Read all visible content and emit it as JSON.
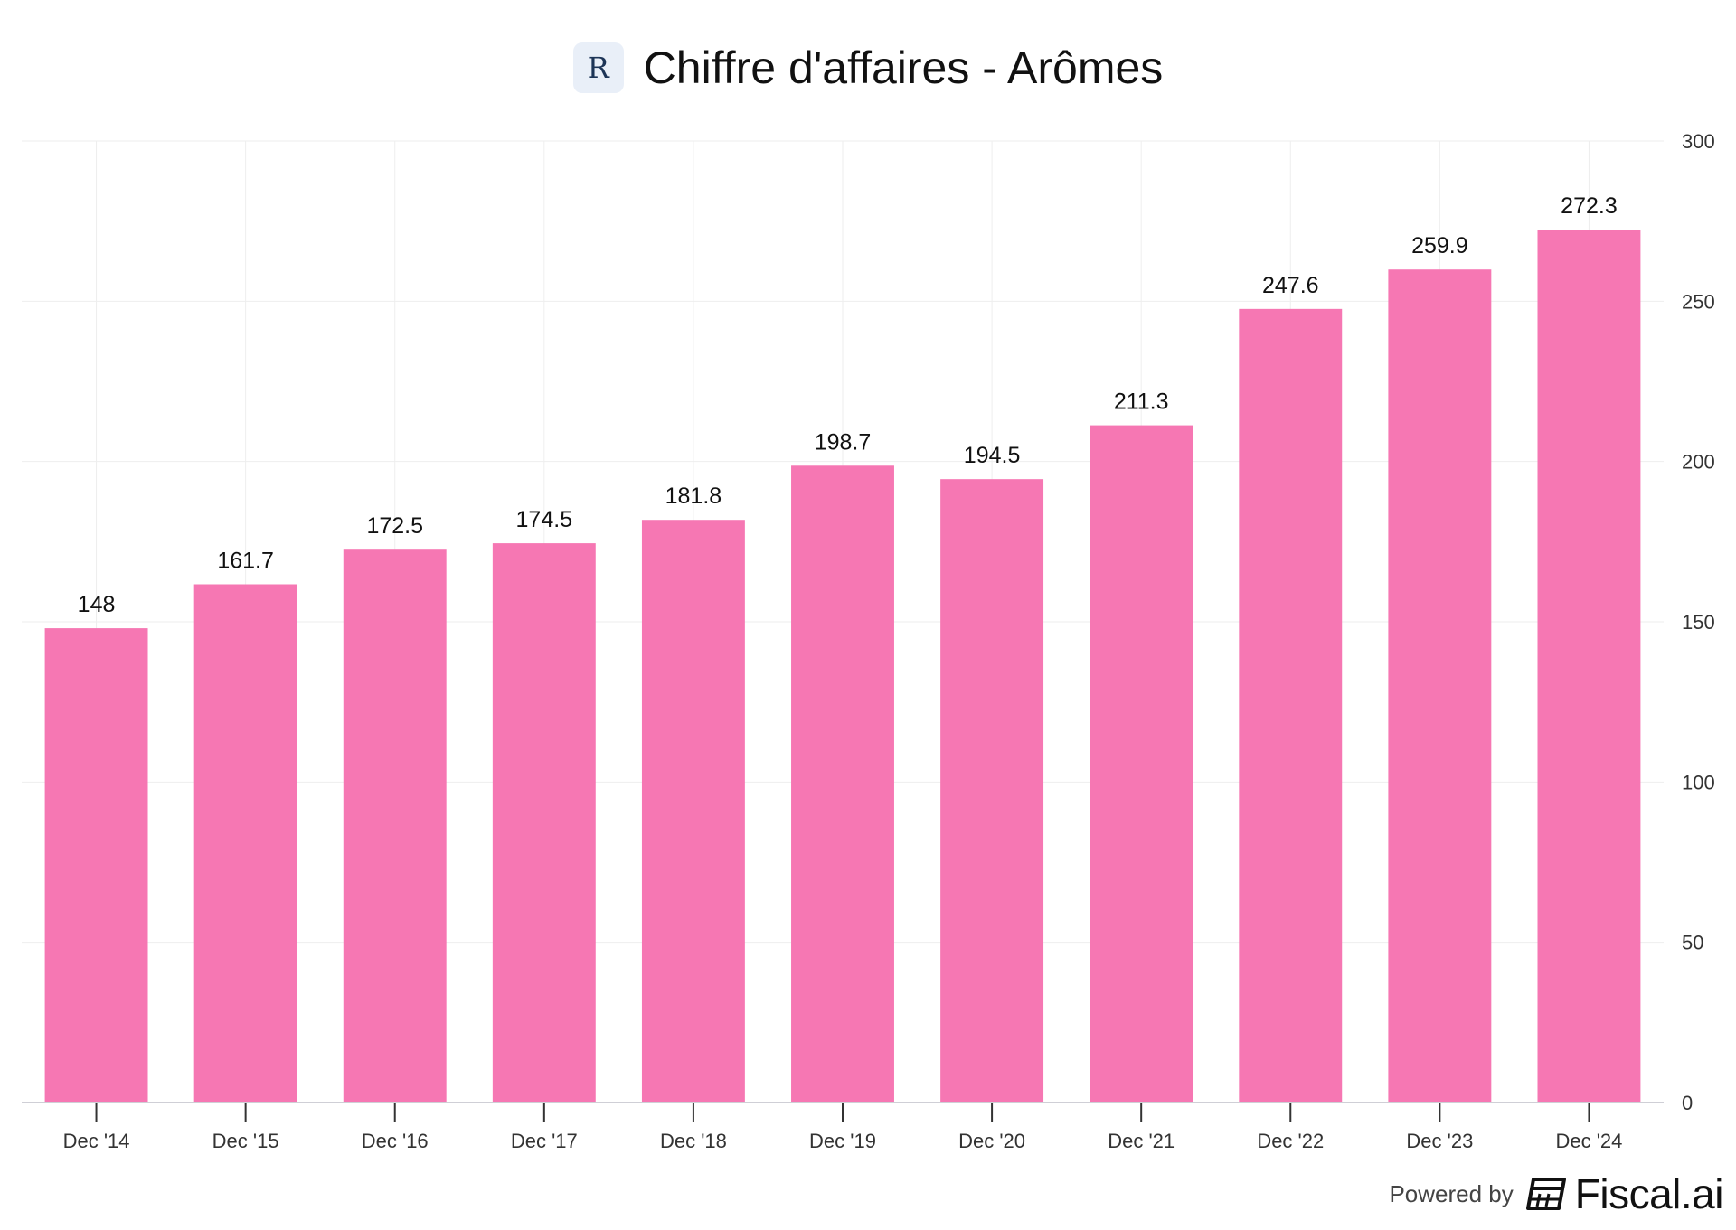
{
  "header": {
    "logo_letter": "R",
    "title": "Chiffre d'affaires - Arômes"
  },
  "footer": {
    "powered_by": "Powered by",
    "brand": "Fiscal.ai"
  },
  "colors": {
    "bar": "#f677b3",
    "grid": "#eeeeee",
    "axis_text": "#333333",
    "label_text": "#111111"
  },
  "chart_data": {
    "type": "bar",
    "title": "Chiffre d'affaires - Arômes",
    "categories": [
      "Dec '14",
      "Dec '15",
      "Dec '16",
      "Dec '17",
      "Dec '18",
      "Dec '19",
      "Dec '20",
      "Dec '21",
      "Dec '22",
      "Dec '23",
      "Dec '24"
    ],
    "values": [
      148,
      161.7,
      172.5,
      174.5,
      181.8,
      198.7,
      194.5,
      211.3,
      247.6,
      259.9,
      272.3
    ],
    "data_labels": [
      "148",
      "161.7",
      "172.5",
      "174.5",
      "181.8",
      "198.7",
      "194.5",
      "211.3",
      "247.6",
      "259.9",
      "272.3"
    ],
    "xlabel": "",
    "ylabel": "",
    "ylim": [
      0,
      300
    ],
    "yticks": [
      "0",
      "50",
      "100",
      "150",
      "200",
      "250",
      "300"
    ],
    "y_axis_position": "right",
    "grid": true,
    "legend": "none"
  }
}
